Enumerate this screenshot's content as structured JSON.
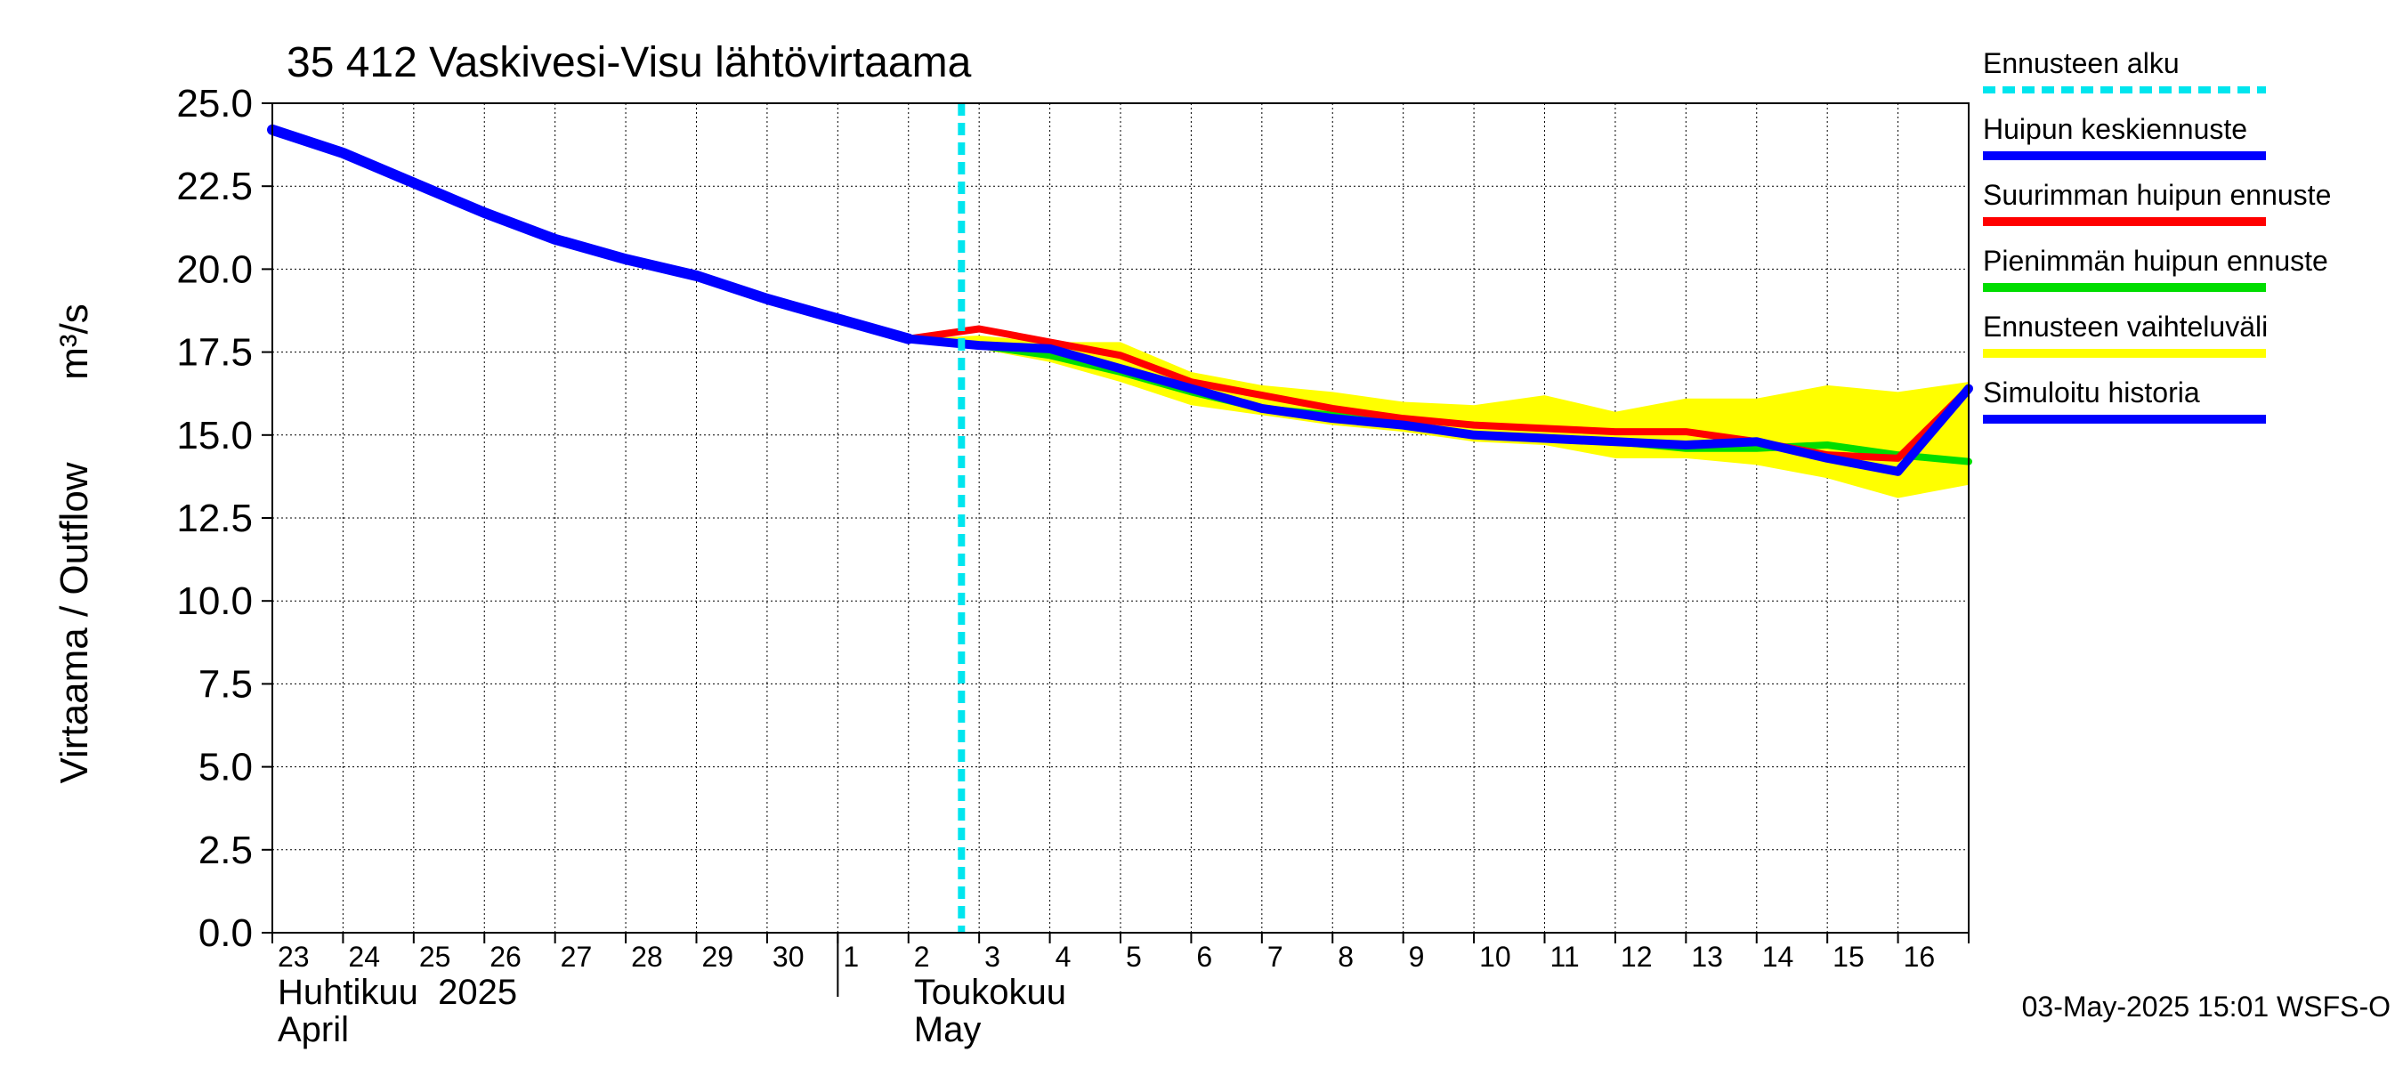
{
  "chart_data": {
    "type": "line",
    "title": "35 412 Vaskivesi-Visu lähtövirtaama",
    "ylabel_fi": "Virtaama / Outflow",
    "ylabel_unit": "m³/s",
    "ylim": [
      0,
      25
    ],
    "y_ticks": [
      0,
      2.5,
      5,
      7.5,
      10,
      12.5,
      15,
      17.5,
      20,
      22.5,
      25
    ],
    "y_tick_labels": [
      "0.0",
      "2.5",
      "5.0",
      "7.5",
      "10.0",
      "12.5",
      "15.0",
      "17.5",
      "20.0",
      "22.5",
      "25.0"
    ],
    "x_start": "2025-04-23",
    "x_end": "2025-05-17",
    "x_ticks": [
      {
        "date": "2025-04-23",
        "label": "23"
      },
      {
        "date": "2025-04-24",
        "label": "24"
      },
      {
        "date": "2025-04-25",
        "label": "25"
      },
      {
        "date": "2025-04-26",
        "label": "26"
      },
      {
        "date": "2025-04-27",
        "label": "27"
      },
      {
        "date": "2025-04-28",
        "label": "28"
      },
      {
        "date": "2025-04-29",
        "label": "29"
      },
      {
        "date": "2025-04-30",
        "label": "30"
      },
      {
        "date": "2025-05-01",
        "label": "1"
      },
      {
        "date": "2025-05-02",
        "label": "2"
      },
      {
        "date": "2025-05-03",
        "label": "3"
      },
      {
        "date": "2025-05-04",
        "label": "4"
      },
      {
        "date": "2025-05-05",
        "label": "5"
      },
      {
        "date": "2025-05-06",
        "label": "6"
      },
      {
        "date": "2025-05-07",
        "label": "7"
      },
      {
        "date": "2025-05-08",
        "label": "8"
      },
      {
        "date": "2025-05-09",
        "label": "9"
      },
      {
        "date": "2025-05-10",
        "label": "10"
      },
      {
        "date": "2025-05-11",
        "label": "11"
      },
      {
        "date": "2025-05-12",
        "label": "12"
      },
      {
        "date": "2025-05-13",
        "label": "13"
      },
      {
        "date": "2025-05-14",
        "label": "14"
      },
      {
        "date": "2025-05-15",
        "label": "15"
      },
      {
        "date": "2025-05-16",
        "label": "16"
      }
    ],
    "month_labels": [
      {
        "date": "2025-04-23",
        "line1": "Huhtikuu  2025",
        "line2": "April"
      },
      {
        "date": "2025-05-02",
        "line1": "Toukokuu",
        "line2": "May"
      }
    ],
    "month_boundary": "2025-05-01",
    "grid": true,
    "forecast_start": "2025-05-02T18:00",
    "legend_position": "right",
    "legend": [
      {
        "key": "forecast_start",
        "label": "Ennusteen alku",
        "color": "#00e5ee",
        "style": "dashed"
      },
      {
        "key": "mean_peak",
        "label": "Huipun keskiennuste",
        "color": "#0000ff",
        "style": "solid"
      },
      {
        "key": "max_peak",
        "label": "Suurimman huipun ennuste",
        "color": "#ff0000",
        "style": "solid"
      },
      {
        "key": "min_peak",
        "label": "Pienimmän huipun ennuste",
        "color": "#00dd00",
        "style": "solid"
      },
      {
        "key": "range",
        "label": "Ennusteen vaihteluväli",
        "color": "#ffff00",
        "style": "band"
      },
      {
        "key": "history",
        "label": "Simuloitu historia",
        "color": "#0000ff",
        "style": "solid"
      }
    ],
    "series": [
      {
        "key": "range",
        "name": "Ennusteen vaihteluväli",
        "color": "#ffff00",
        "x": [
          "2025-05-02",
          "2025-05-03",
          "2025-05-04",
          "2025-05-05",
          "2025-05-06",
          "2025-05-07",
          "2025-05-08",
          "2025-05-09",
          "2025-05-10",
          "2025-05-11",
          "2025-05-12",
          "2025-05-13",
          "2025-05-14",
          "2025-05-15",
          "2025-05-16",
          "2025-05-17"
        ],
        "upper": [
          17.9,
          18.0,
          17.8,
          17.8,
          16.9,
          16.5,
          16.3,
          16.0,
          15.9,
          16.2,
          15.7,
          16.1,
          16.1,
          16.5,
          16.3,
          16.6
        ],
        "lower": [
          17.9,
          17.6,
          17.2,
          16.6,
          15.9,
          15.6,
          15.3,
          15.1,
          14.8,
          14.7,
          14.3,
          14.3,
          14.1,
          13.7,
          13.1,
          13.5
        ]
      },
      {
        "key": "min_peak",
        "name": "Pienimmän huipun ennuste",
        "color": "#00dd00",
        "x": [
          "2025-05-02",
          "2025-05-03",
          "2025-05-04",
          "2025-05-05",
          "2025-05-06",
          "2025-05-07",
          "2025-05-08",
          "2025-05-09",
          "2025-05-10",
          "2025-05-11",
          "2025-05-12",
          "2025-05-13",
          "2025-05-14",
          "2025-05-15",
          "2025-05-16",
          "2025-05-17"
        ],
        "values": [
          17.9,
          17.7,
          17.4,
          16.9,
          16.3,
          15.8,
          15.6,
          15.3,
          15.0,
          14.9,
          14.8,
          14.6,
          14.6,
          14.7,
          14.4,
          14.2
        ]
      },
      {
        "key": "max_peak",
        "name": "Suurimman huipun ennuste",
        "color": "#ff0000",
        "x": [
          "2025-05-02",
          "2025-05-03",
          "2025-05-04",
          "2025-05-05",
          "2025-05-06",
          "2025-05-07",
          "2025-05-08",
          "2025-05-09",
          "2025-05-10",
          "2025-05-11",
          "2025-05-12",
          "2025-05-13",
          "2025-05-14",
          "2025-05-15",
          "2025-05-16",
          "2025-05-17"
        ],
        "values": [
          17.9,
          18.2,
          17.8,
          17.4,
          16.6,
          16.2,
          15.8,
          15.5,
          15.3,
          15.2,
          15.1,
          15.1,
          14.8,
          14.4,
          14.3,
          16.4
        ]
      },
      {
        "key": "mean_peak",
        "name": "Huipun keskiennuste",
        "color": "#0000ff",
        "x": [
          "2025-05-02",
          "2025-05-03",
          "2025-05-04",
          "2025-05-05",
          "2025-05-06",
          "2025-05-07",
          "2025-05-08",
          "2025-05-09",
          "2025-05-10",
          "2025-05-11",
          "2025-05-12",
          "2025-05-13",
          "2025-05-14",
          "2025-05-15",
          "2025-05-16",
          "2025-05-17"
        ],
        "values": [
          17.9,
          17.7,
          17.6,
          17.0,
          16.4,
          15.8,
          15.5,
          15.3,
          15.0,
          14.9,
          14.8,
          14.7,
          14.8,
          14.3,
          13.9,
          16.4
        ]
      },
      {
        "key": "history",
        "name": "Simuloitu historia",
        "color": "#0000ff",
        "x": [
          "2025-04-23",
          "2025-04-24",
          "2025-04-25",
          "2025-04-26",
          "2025-04-27",
          "2025-04-28",
          "2025-04-29",
          "2025-04-30",
          "2025-05-01",
          "2025-05-02"
        ],
        "values": [
          24.2,
          23.5,
          22.6,
          21.7,
          20.9,
          20.3,
          19.8,
          19.1,
          18.5,
          17.9
        ]
      }
    ]
  },
  "footer": {
    "timestamp": "03-May-2025 15:01 WSFS-O"
  }
}
